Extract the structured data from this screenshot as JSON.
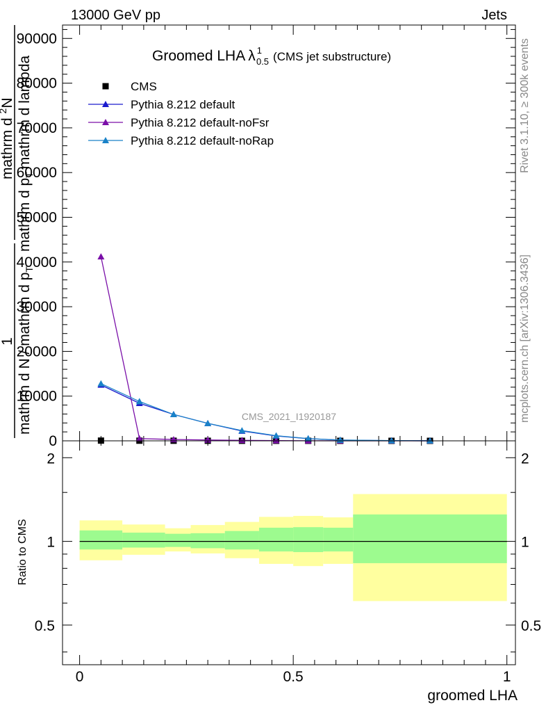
{
  "header": {
    "left": "13000 GeV pp",
    "right": "Jets"
  },
  "side_labels": {
    "rivet": "Rivet 3.1.10, ≥ 300k events",
    "mcplots": "mcplots.cern.ch [arXiv:1306.3436]"
  },
  "chart_data": [
    {
      "type": "line",
      "panel": "main",
      "title": "Groomed LHA",
      "title_symbol": "λ",
      "title_sup": "1",
      "title_sub": "0.5",
      "subtitle": "(CMS jet substructure)",
      "watermark": "CMS_2021_I1920187",
      "ylabel_lines": [
        "1",
        "mathrm d N / mathrm d p_T mathrm d p_T mathrm d lambda",
        "mathrm d^2N",
        "mathrm dp_T mathrm d lambda"
      ],
      "ylabel_parts": {
        "num1": "1",
        "den1": "mathrm d N / mathrm d",
        "den1b": "p",
        "den1_sub": "T",
        "num2": "mathrm d",
        "num2_sup": "2",
        "num2b": "N",
        "den2": "mathrm d",
        "den2b": "p",
        "den2_sub": "T",
        "den2c": "mathrm d lambda"
      },
      "xlim": [
        -0.04,
        1.02
      ],
      "ylim": [
        0,
        93000
      ],
      "yticks": [
        0,
        10000,
        20000,
        30000,
        40000,
        50000,
        60000,
        70000,
        80000,
        90000
      ],
      "ytick_labels": [
        "0",
        "10000",
        "20000",
        "30000",
        "40000",
        "50000",
        "60000",
        "70000",
        "80000",
        "90000"
      ],
      "x": [
        0.05,
        0.14,
        0.22,
        0.3,
        0.38,
        0.46,
        0.535,
        0.61,
        0.73,
        0.82
      ],
      "series": [
        {
          "name": "CMS",
          "marker": "square",
          "color": "#000000",
          "values": [
            50,
            30,
            20,
            15,
            10,
            8,
            5,
            3,
            2,
            1
          ]
        },
        {
          "name": "Pythia 8.212 default",
          "marker": "triangle",
          "color": "#1a1acd",
          "values": [
            12500,
            8400,
            5900,
            3900,
            2200,
            1100,
            480,
            170,
            40,
            10
          ]
        },
        {
          "name": "Pythia 8.212 default-noFsr",
          "marker": "triangle",
          "color": "#7a0fa8",
          "values": [
            41200,
            500,
            300,
            200,
            120,
            60,
            25,
            10,
            3,
            1
          ]
        },
        {
          "name": "Pythia 8.212 default-noRap",
          "marker": "triangle",
          "color": "#1a82c8",
          "values": [
            12800,
            8800,
            5900,
            3900,
            2300,
            1150,
            500,
            180,
            45,
            12
          ]
        }
      ]
    },
    {
      "type": "area",
      "panel": "ratio",
      "ylabel": "Ratio to CMS",
      "xlabel": "groomed LHA",
      "xlim": [
        -0.04,
        1.02
      ],
      "ylim": [
        0.36,
        2.3
      ],
      "ytick_labels": [
        "0.5",
        "1",
        "2"
      ],
      "yticks": [
        0.5,
        1,
        2
      ],
      "xtick_labels": [
        "0",
        "0.5",
        "1"
      ],
      "xticks": [
        0,
        0.5,
        1
      ],
      "reference": 1.0,
      "bins": [
        {
          "lo": 0.0,
          "hi": 0.1,
          "inner": [
            0.935,
            1.095
          ],
          "outer": [
            0.855,
            1.19
          ]
        },
        {
          "lo": 0.1,
          "hi": 0.2,
          "inner": [
            0.95,
            1.075
          ],
          "outer": [
            0.895,
            1.15
          ]
        },
        {
          "lo": 0.2,
          "hi": 0.26,
          "inner": [
            0.955,
            1.065
          ],
          "outer": [
            0.92,
            1.115
          ]
        },
        {
          "lo": 0.26,
          "hi": 0.34,
          "inner": [
            0.945,
            1.07
          ],
          "outer": [
            0.905,
            1.145
          ]
        },
        {
          "lo": 0.34,
          "hi": 0.42,
          "inner": [
            0.935,
            1.09
          ],
          "outer": [
            0.87,
            1.175
          ]
        },
        {
          "lo": 0.42,
          "hi": 0.5,
          "inner": [
            0.92,
            1.12
          ],
          "outer": [
            0.83,
            1.225
          ]
        },
        {
          "lo": 0.5,
          "hi": 0.57,
          "inner": [
            0.915,
            1.125
          ],
          "outer": [
            0.815,
            1.235
          ]
        },
        {
          "lo": 0.57,
          "hi": 0.64,
          "inner": [
            0.92,
            1.12
          ],
          "outer": [
            0.83,
            1.22
          ]
        },
        {
          "lo": 0.64,
          "hi": 1.0,
          "inner": [
            0.835,
            1.25
          ],
          "outer": [
            0.61,
            1.48
          ]
        }
      ],
      "band_colors": {
        "inner": "#9dfb8f",
        "outer": "#ffff9f"
      }
    }
  ]
}
